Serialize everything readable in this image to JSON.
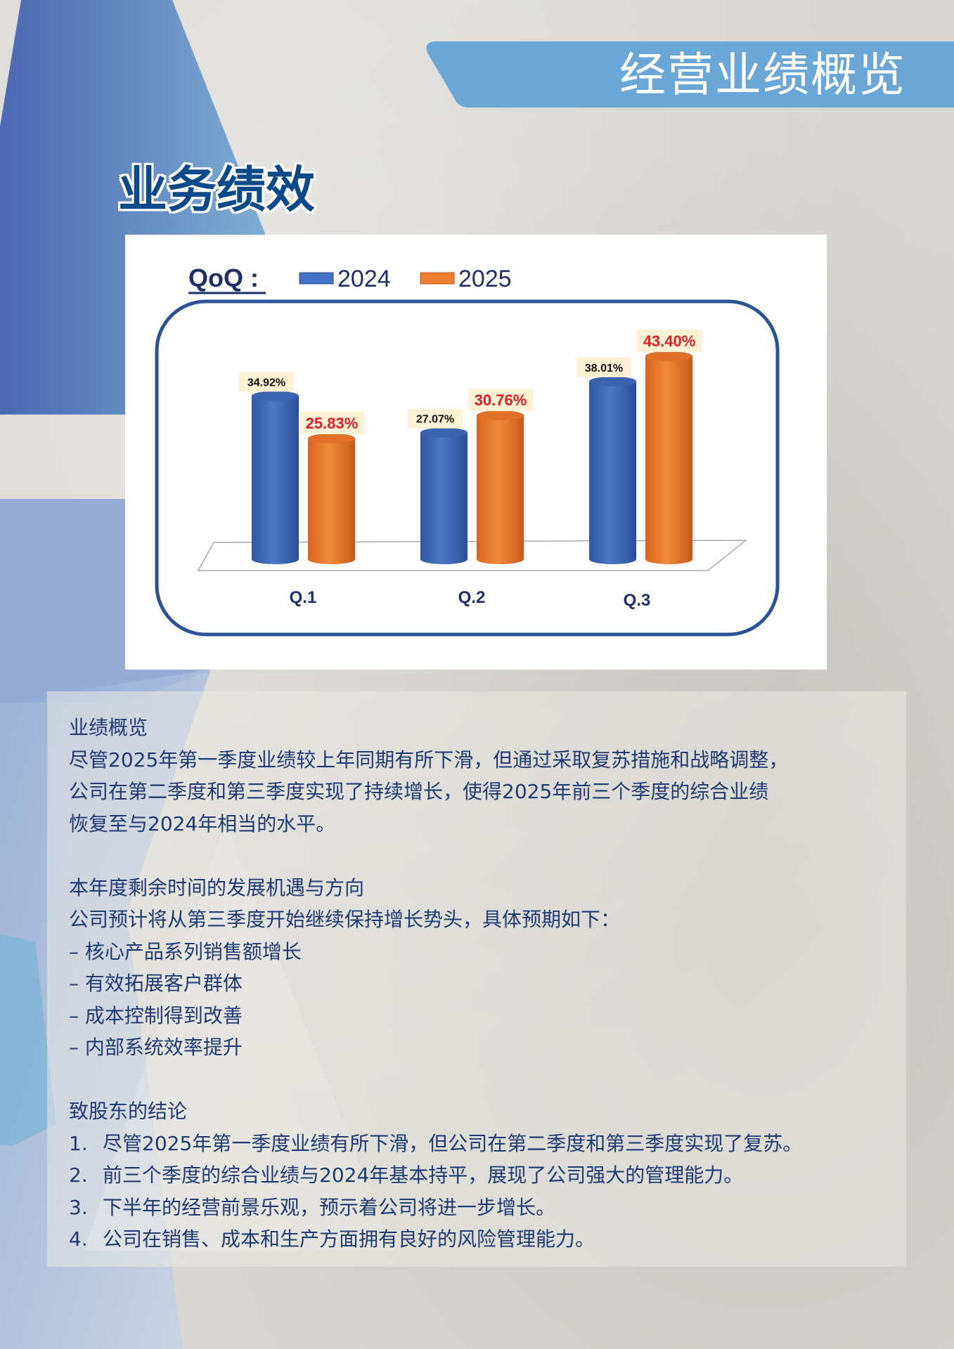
{
  "header": {
    "title": "经营业绩概览",
    "section_title": "业务绩效"
  },
  "colors": {
    "series_2024": "#4472c4",
    "series_2025": "#ed7d31",
    "title_blue": "#0b4a8a",
    "banner": "#6aa6d6",
    "label_2025": "#e31b23"
  },
  "chart_data": {
    "type": "bar",
    "title": "QoQ :",
    "categories": [
      "Q.1",
      "Q.2",
      "Q.3"
    ],
    "series": [
      {
        "name": "2024",
        "values": [
          34.92,
          27.07,
          38.01
        ],
        "labels": [
          "34.92%",
          "27.07%",
          "38.01%"
        ]
      },
      {
        "name": "2025",
        "values": [
          25.83,
          30.76,
          43.4
        ],
        "labels": [
          "25.83%",
          "30.76%",
          "43.40%"
        ]
      }
    ],
    "legend": "top-left",
    "grid": false,
    "style": "3d-cylinder"
  },
  "body": {
    "h1": "业绩概览",
    "p1": [
      "尽管2025年第一季度业绩较上年同期有所下滑，但通过采取复苏措施和战略调整，",
      "公司在第二季度和第三季度实现了持续增长，使得2025年前三个季度的综合业绩",
      "恢复至与2024年相当的水平。"
    ],
    "h2": "本年度剩余时间的发展机遇与方向",
    "p2": "公司预计将从第三季度开始继续保持增长势头，具体预期如下：",
    "bullets": [
      "–  核心产品系列销售额增长",
      "–  有效拓展客户群体",
      "–  成本控制得到改善",
      "–  内部系统效率提升"
    ],
    "h3": "致股东的结论",
    "conclusions": [
      {
        "n": "1.",
        "t": "尽管2025年第一季度业绩有所下滑，但公司在第二季度和第三季度实现了复苏。"
      },
      {
        "n": "2.",
        "t": "前三个季度的综合业绩与2024年基本持平，展现了公司强大的管理能力。"
      },
      {
        "n": "3.",
        "t": "下半年的经营前景乐观，预示着公司将进一步增长。"
      },
      {
        "n": "4.",
        "t": "公司在销售、成本和生产方面拥有良好的风险管理能力。"
      }
    ]
  }
}
